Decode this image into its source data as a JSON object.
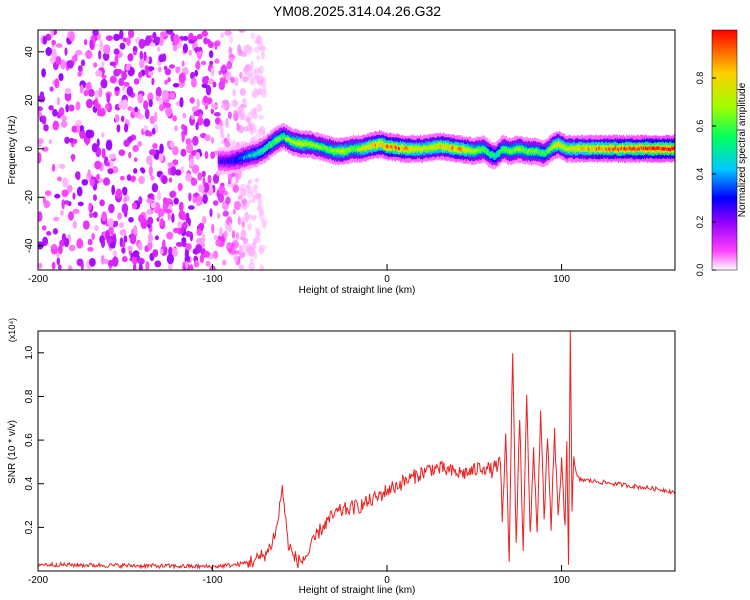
{
  "title": "YM08.2025.314.04.26.G32",
  "chart_data": [
    {
      "type": "heatmap",
      "xlabel": "Height of straight line (km)",
      "ylabel": "Frequency (Hz)",
      "xlim": [
        -200,
        165
      ],
      "ylim": [
        -50,
        49
      ],
      "xticks": [
        -200,
        -100,
        0,
        100
      ],
      "xtick_labels": [
        "-200",
        "-100",
        "0",
        "100"
      ],
      "yticks": [
        -40,
        -20,
        0,
        20,
        40
      ],
      "ytick_labels": [
        "-40",
        "-20",
        "0",
        "20",
        "40"
      ],
      "colorbar": {
        "label": "Normalized spectral amplitude",
        "range": [
          0,
          1
        ],
        "ticks": [
          0,
          0.2,
          0.4,
          0.6,
          0.8
        ],
        "tick_labels": [
          "0.0",
          "0.2",
          "0.4",
          "0.6",
          "0.8"
        ],
        "colors": [
          "#ffffff",
          "#ff40ff",
          "#9000ff",
          "#0000ff",
          "#00c8ff",
          "#00ff60",
          "#a0ff00",
          "#ffd000",
          "#ff0000"
        ]
      },
      "noise_region": {
        "x": [
          -200,
          -85
        ],
        "y": [
          -50,
          49
        ],
        "amplitude": 0.2
      },
      "ridge": {
        "x": [
          -97,
          -90,
          -85,
          -80,
          -75,
          -70,
          -65,
          -60,
          -55,
          -50,
          -45,
          -40,
          -35,
          -30,
          -25,
          -20,
          -15,
          -10,
          -5,
          0,
          10,
          20,
          30,
          40,
          50,
          55,
          58,
          62,
          66,
          70,
          75,
          80,
          85,
          90,
          95,
          98,
          102,
          110,
          120,
          130,
          140,
          150,
          165
        ],
        "frequency": [
          -5,
          -5,
          -4,
          -3,
          -2,
          0,
          3,
          5,
          3,
          2,
          2,
          1,
          0,
          -1,
          -1,
          0,
          0,
          1,
          2,
          1,
          0,
          0,
          1,
          0,
          -1,
          0,
          -2,
          -3,
          0,
          -1,
          0,
          -1,
          -1,
          -2,
          1,
          2,
          0,
          0,
          0,
          0,
          0,
          0,
          0
        ],
        "amplitude": [
          0.3,
          0.35,
          0.45,
          0.5,
          0.55,
          0.6,
          0.7,
          0.65,
          0.75,
          0.8,
          0.75,
          0.7,
          0.7,
          0.75,
          0.8,
          0.7,
          0.8,
          0.85,
          0.9,
          0.95,
          0.9,
          0.8,
          0.85,
          0.9,
          0.75,
          0.7,
          0.65,
          0.6,
          0.7,
          0.7,
          0.75,
          0.7,
          0.7,
          0.65,
          0.8,
          0.85,
          0.8,
          0.85,
          0.9,
          0.95,
          0.95,
          1.0,
          1.0
        ]
      }
    },
    {
      "type": "line",
      "xlabel": "Height of straight line (km)",
      "ylabel": "SNR (10 * v/v)",
      "y_multiplier": "(x10⁴)",
      "xlim": [
        -200,
        165
      ],
      "ylim": [
        0,
        1.1
      ],
      "xticks": [
        -200,
        -100,
        0,
        100
      ],
      "xtick_labels": [
        "-200",
        "-100",
        "0",
        "100"
      ],
      "yticks": [
        0.2,
        0.4,
        0.6,
        0.8,
        1.0
      ],
      "ytick_labels": [
        "0.2",
        "0.4",
        "0.6",
        "0.8",
        "1.0"
      ],
      "series": [
        {
          "color": "#ee2020",
          "x": [
            -200,
            -150,
            -100,
            -85,
            -75,
            -68,
            -63,
            -60,
            -57,
            -54,
            -50,
            -45,
            -40,
            -35,
            -30,
            -25,
            -20,
            -15,
            -10,
            -5,
            0,
            5,
            10,
            15,
            20,
            25,
            30,
            35,
            40,
            45,
            50,
            55,
            60,
            65,
            66,
            68,
            70,
            72,
            74,
            76,
            78,
            80,
            82,
            84,
            86,
            88,
            90,
            92,
            94,
            96,
            98,
            100,
            102,
            103,
            104,
            105,
            106,
            107,
            108,
            110,
            120,
            130,
            140,
            150,
            160,
            165
          ],
          "values": [
            0.03,
            0.025,
            0.02,
            0.03,
            0.05,
            0.09,
            0.2,
            0.39,
            0.14,
            0.07,
            0.04,
            0.08,
            0.17,
            0.22,
            0.26,
            0.28,
            0.29,
            0.3,
            0.32,
            0.34,
            0.37,
            0.39,
            0.41,
            0.43,
            0.45,
            0.47,
            0.47,
            0.46,
            0.45,
            0.45,
            0.46,
            0.48,
            0.46,
            0.5,
            0.2,
            0.62,
            0.06,
            1.01,
            0.12,
            0.71,
            0.1,
            0.82,
            0.15,
            0.56,
            0.18,
            0.72,
            0.25,
            0.6,
            0.2,
            0.63,
            0.25,
            0.5,
            0.18,
            0.6,
            0.04,
            1.1,
            0.3,
            0.5,
            0.45,
            0.42,
            0.41,
            0.4,
            0.39,
            0.38,
            0.37,
            0.36
          ]
        }
      ]
    }
  ]
}
